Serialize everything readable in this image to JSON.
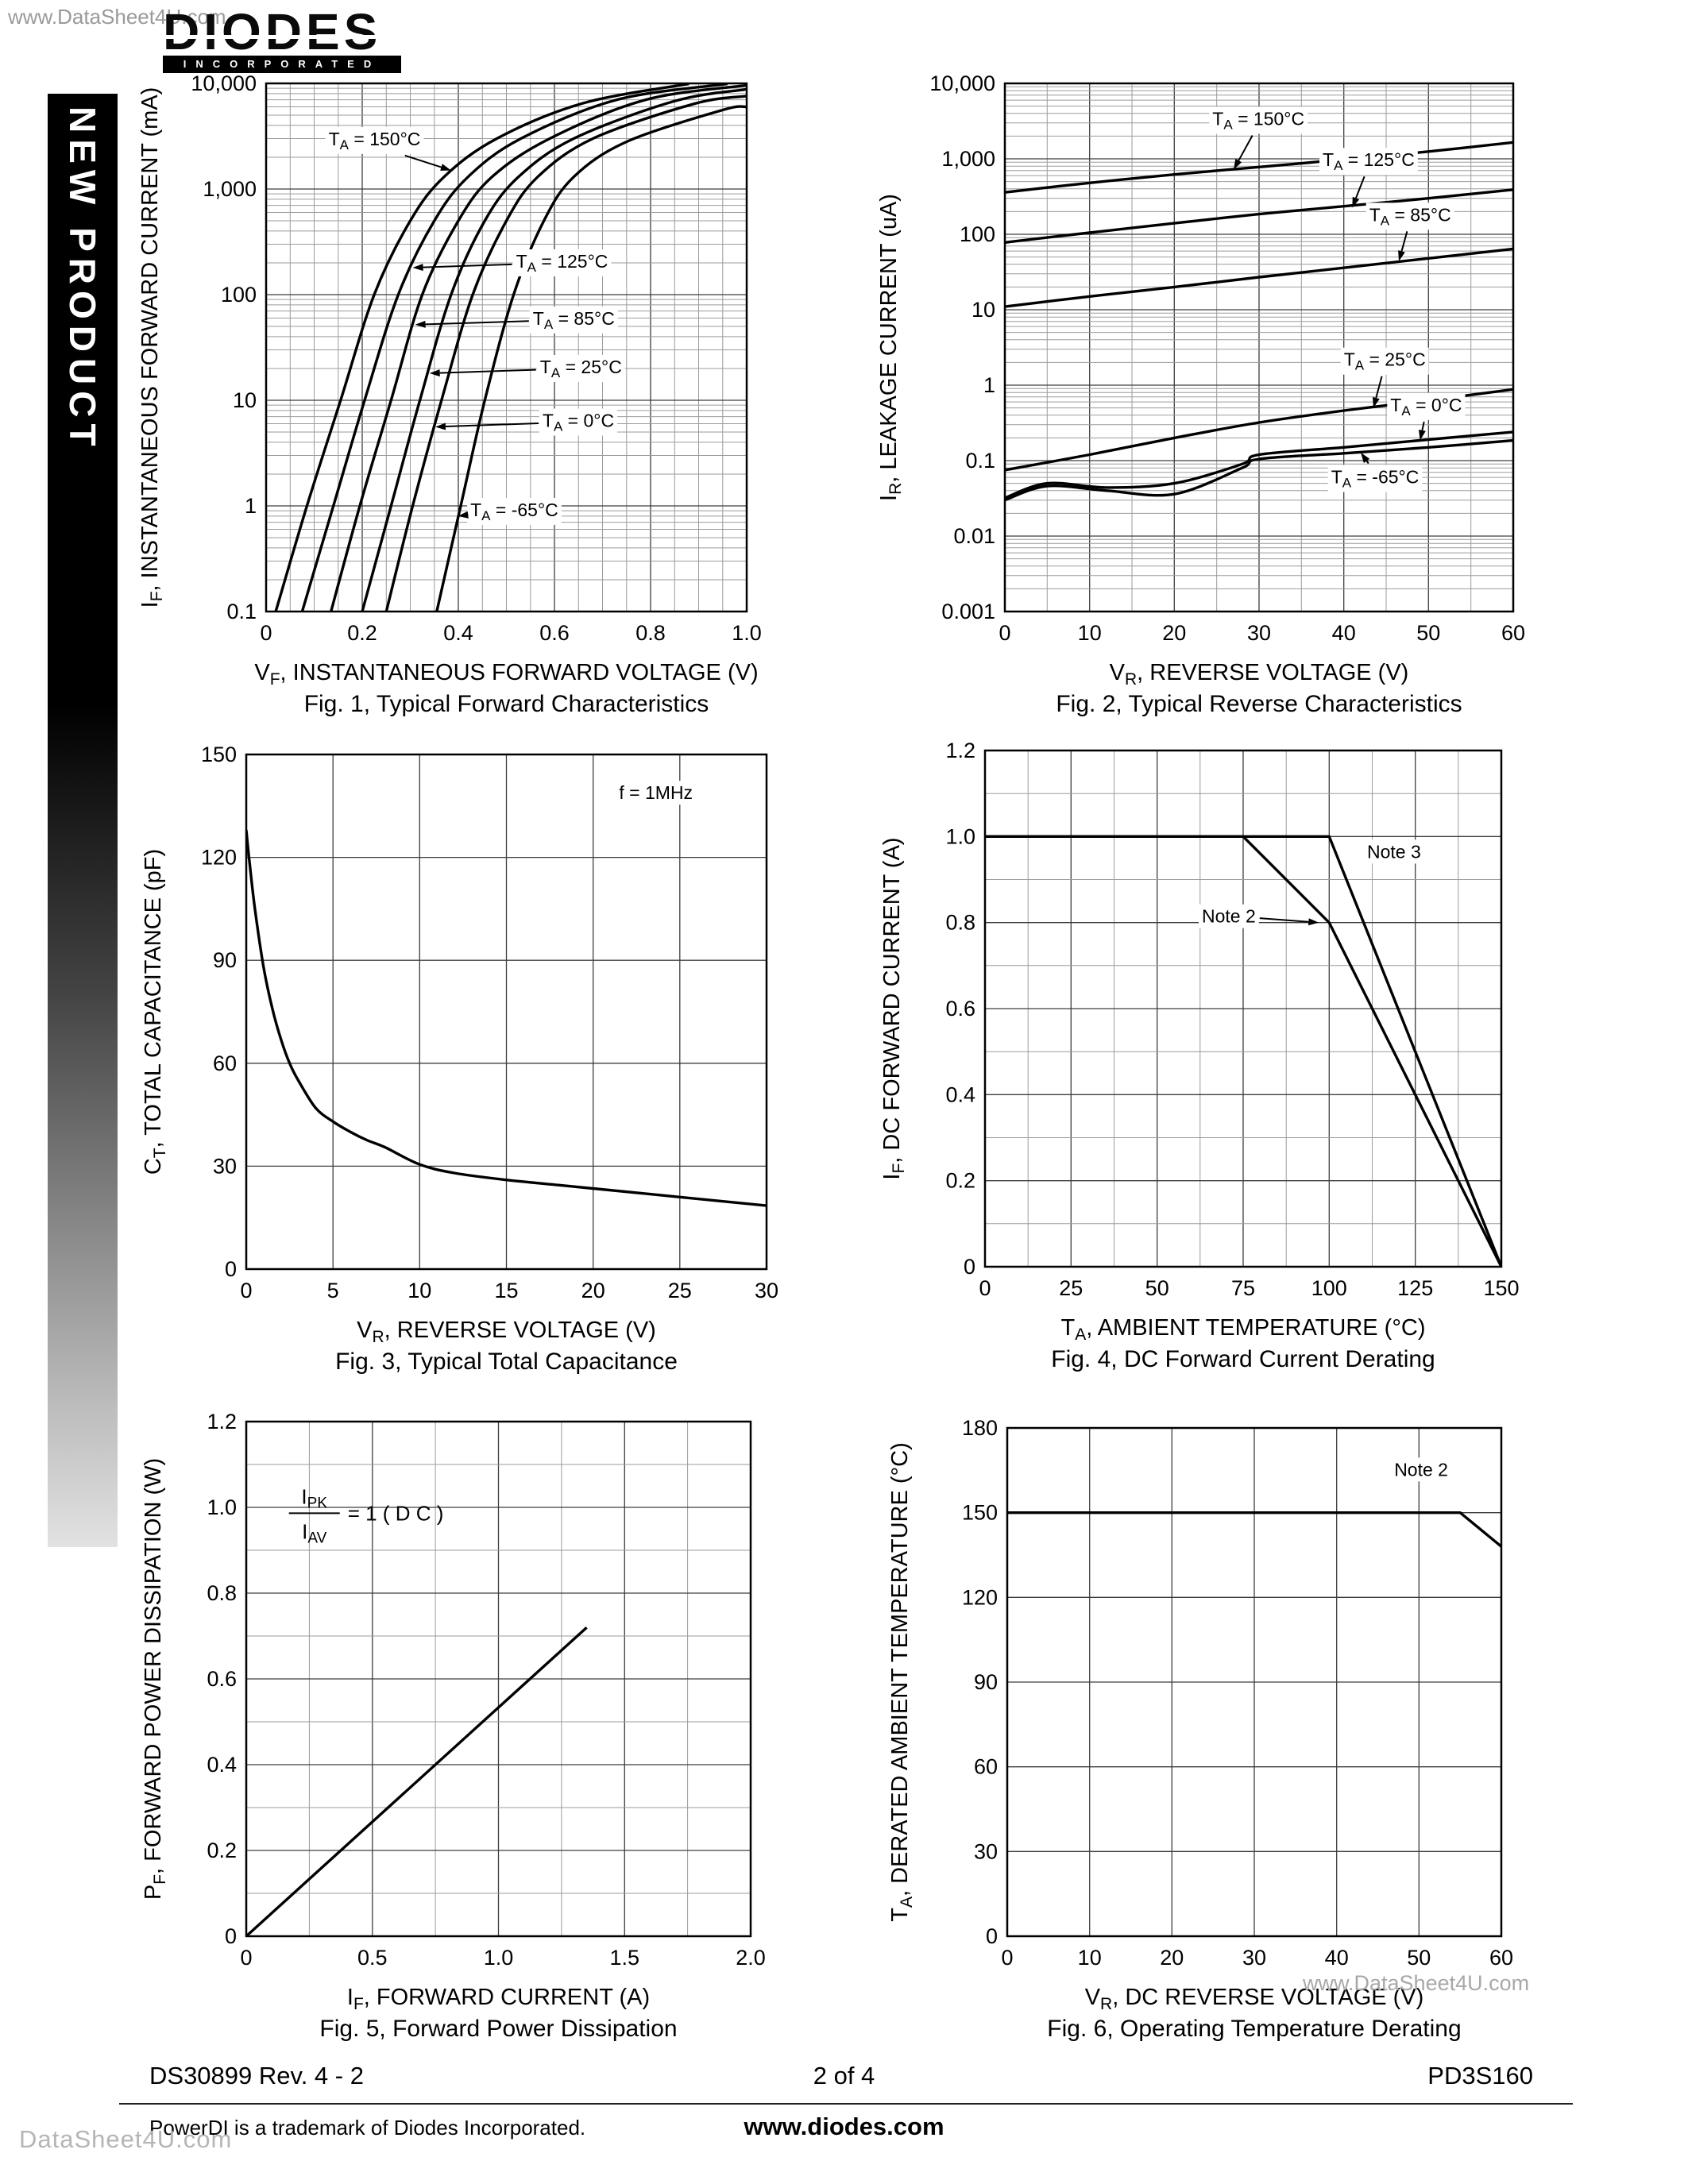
{
  "page": {
    "watermark_top": "www.DataSheet4U.com",
    "watermark_fig6": "www.DataSheet4U.com",
    "watermark_bottom": "DataSheet4U.com",
    "banner": "NEW PRODUCT",
    "logo": {
      "name": "DIODES",
      "sub": "INCORPORATED"
    },
    "footer": {
      "doc_number": "DS30899 Rev. 4 - 2",
      "page_indicator": "2 of 4",
      "part_number": "PD3S160",
      "trademark": "PowerDI is a trademark of Diodes Incorporated.",
      "website": "www.diodes.com"
    }
  },
  "chart_data": [
    {
      "id": "fig1",
      "type": "line",
      "title": "Fig. 1, Typical Forward Characteristics",
      "xlabel": "V_F_, INSTANTANEOUS FORWARD VOLTAGE (V)",
      "ylabel": "I_F_, INSTANTANEOUS FORWARD CURRENT (mA)",
      "x": {
        "min": 0,
        "max": 1,
        "ticks": [
          0,
          0.2,
          0.4,
          0.6,
          0.8,
          1
        ],
        "tick_labels": [
          "0",
          "0.2",
          "0.4",
          "0.6",
          "0.8",
          "1.0"
        ],
        "grid_step": 0.05
      },
      "y": {
        "log": true,
        "min": 0.1,
        "max": 10000,
        "ticks": [
          10000,
          1000,
          100,
          10,
          1,
          0.1
        ],
        "tick_labels": [
          "10,000",
          "1,000",
          "100",
          "10",
          "1",
          "0.1"
        ]
      },
      "series": [
        {
          "name": "TA = 150C",
          "smooth": true,
          "points": [
            [
              0.02,
              0.1
            ],
            [
              0.085,
              1
            ],
            [
              0.155,
              10
            ],
            [
              0.225,
              100
            ],
            [
              0.3,
              500
            ],
            [
              0.37,
              1300
            ],
            [
              0.48,
              3000
            ],
            [
              0.66,
              6500
            ],
            [
              0.88,
              9900
            ]
          ]
        },
        {
          "name": "TA = 125C",
          "smooth": true,
          "points": [
            [
              0.075,
              0.1
            ],
            [
              0.14,
              1
            ],
            [
              0.205,
              10
            ],
            [
              0.275,
              100
            ],
            [
              0.35,
              500
            ],
            [
              0.42,
              1300
            ],
            [
              0.53,
              3000
            ],
            [
              0.73,
              7000
            ],
            [
              0.96,
              9900
            ]
          ]
        },
        {
          "name": "TA = 85C",
          "smooth": true,
          "points": [
            [
              0.135,
              0.1
            ],
            [
              0.195,
              1
            ],
            [
              0.26,
              10
            ],
            [
              0.325,
              100
            ],
            [
              0.4,
              500
            ],
            [
              0.47,
              1300
            ],
            [
              0.59,
              3000
            ],
            [
              0.79,
              7000
            ],
            [
              1,
              9600
            ]
          ]
        },
        {
          "name": "TA = 25C",
          "smooth": true,
          "points": [
            [
              0.2,
              0.1
            ],
            [
              0.26,
              1
            ],
            [
              0.32,
              10
            ],
            [
              0.385,
              100
            ],
            [
              0.455,
              500
            ],
            [
              0.525,
              1300
            ],
            [
              0.64,
              3000
            ],
            [
              0.85,
              6800
            ],
            [
              1,
              8800
            ]
          ]
        },
        {
          "name": "TA = 0C",
          "smooth": true,
          "points": [
            [
              0.25,
              0.1
            ],
            [
              0.305,
              1
            ],
            [
              0.365,
              10
            ],
            [
              0.43,
              100
            ],
            [
              0.5,
              500
            ],
            [
              0.565,
              1300
            ],
            [
              0.68,
              3000
            ],
            [
              0.89,
              6400
            ],
            [
              1,
              7600
            ]
          ]
        },
        {
          "name": "TA = -65C",
          "smooth": true,
          "points": [
            [
              0.355,
              0.1
            ],
            [
              0.405,
              1
            ],
            [
              0.455,
              10
            ],
            [
              0.515,
              100
            ],
            [
              0.578,
              500
            ],
            [
              0.64,
              1300
            ],
            [
              0.75,
              2800
            ],
            [
              0.95,
              5600
            ],
            [
              1,
              6000
            ]
          ]
        }
      ],
      "annotations": [
        {
          "text": "T_A_ = 150°C",
          "x": 0.13,
          "y": 2600,
          "target": {
            "x": 0.385,
            "y": 1500
          }
        },
        {
          "text": "T_A_ = 125°C",
          "x": 0.52,
          "y": 180,
          "target": {
            "x": 0.305,
            "y": 180
          }
        },
        {
          "text": "T_A_ = 85°C",
          "x": 0.555,
          "y": 52,
          "target": {
            "x": 0.31,
            "y": 52
          }
        },
        {
          "text": "T_A_ = 25°C",
          "x": 0.57,
          "y": 18,
          "target": {
            "x": 0.34,
            "y": 18
          }
        },
        {
          "text": "T_A_ = 0°C",
          "x": 0.575,
          "y": 5.6,
          "target": {
            "x": 0.352,
            "y": 5.6
          }
        },
        {
          "text": "T_A_ = -65°C",
          "x": 0.425,
          "y": 0.8,
          "target": {
            "x": 0.399,
            "y": 0.8
          }
        }
      ]
    },
    {
      "id": "fig2",
      "type": "line",
      "title": "Fig. 2, Typical Reverse Characteristics",
      "xlabel": "V_R_, REVERSE VOLTAGE (V)",
      "ylabel": "I_R_, LEAKAGE CURRENT (uA)",
      "x": {
        "min": 0,
        "max": 60,
        "ticks": [
          0,
          10,
          20,
          30,
          40,
          50,
          60
        ],
        "tick_labels": [
          "0",
          "10",
          "20",
          "30",
          "40",
          "50",
          "60"
        ],
        "grid_step": 5
      },
      "y": {
        "log": true,
        "min": 0.001,
        "max": 10000,
        "ticks": [
          10000,
          1000,
          100,
          10,
          1,
          0.1,
          0.01,
          0.001
        ],
        "tick_labels": [
          "10,000",
          "1,000",
          "100",
          "10",
          "1",
          "0.1",
          "0.01",
          "0.001"
        ]
      },
      "series": [
        {
          "name": "TA = 150C",
          "smooth": true,
          "points": [
            [
              0,
              360
            ],
            [
              10,
              480
            ],
            [
              20,
              620
            ],
            [
              30,
              780
            ],
            [
              40,
              980
            ],
            [
              50,
              1250
            ],
            [
              60,
              1650
            ]
          ]
        },
        {
          "name": "TA = 125C",
          "smooth": true,
          "points": [
            [
              0,
              78
            ],
            [
              10,
              105
            ],
            [
              20,
              140
            ],
            [
              30,
              185
            ],
            [
              40,
              235
            ],
            [
              50,
              300
            ],
            [
              60,
              390
            ]
          ]
        },
        {
          "name": "TA = 85C",
          "smooth": true,
          "points": [
            [
              0,
              11
            ],
            [
              10,
              15
            ],
            [
              20,
              20
            ],
            [
              30,
              27
            ],
            [
              40,
              36
            ],
            [
              50,
              48
            ],
            [
              60,
              64
            ]
          ]
        },
        {
          "name": "TA = 25C",
          "smooth": true,
          "points": [
            [
              0,
              0.075
            ],
            [
              10,
              0.12
            ],
            [
              20,
              0.2
            ],
            [
              30,
              0.32
            ],
            [
              40,
              0.46
            ],
            [
              50,
              0.63
            ],
            [
              60,
              0.88
            ]
          ]
        },
        {
          "name": "TA = 0C",
          "smooth": true,
          "points": [
            [
              0,
              0.032
            ],
            [
              5,
              0.05
            ],
            [
              12,
              0.044
            ],
            [
              20,
              0.05
            ],
            [
              28,
              0.09
            ],
            [
              30,
              0.12
            ],
            [
              40,
              0.15
            ],
            [
              50,
              0.19
            ],
            [
              60,
              0.24
            ]
          ]
        },
        {
          "name": "TA = -65C",
          "smooth": true,
          "points": [
            [
              0,
              0.03
            ],
            [
              5,
              0.046
            ],
            [
              12,
              0.04
            ],
            [
              20,
              0.036
            ],
            [
              28,
              0.08
            ],
            [
              30,
              0.105
            ],
            [
              40,
              0.125
            ],
            [
              50,
              0.15
            ],
            [
              60,
              0.185
            ]
          ]
        }
      ],
      "annotations": [
        {
          "text": "T_A_ = 150°C",
          "x": 24.5,
          "y": 2800,
          "target": {
            "x": 27,
            "y": 720
          }
        },
        {
          "text": "T_A_ = 125°C",
          "x": 37.5,
          "y": 800,
          "target": {
            "x": 41,
            "y": 225
          }
        },
        {
          "text": "T_A_ = 85°C",
          "x": 43,
          "y": 150,
          "target": {
            "x": 46.5,
            "y": 44
          }
        },
        {
          "text": "T_A_ = 25°C",
          "x": 40,
          "y": 1.8,
          "target": {
            "x": 43.5,
            "y": 0.5
          }
        },
        {
          "text": "T_A_ = 0°C",
          "x": 45.5,
          "y": 0.45,
          "target": {
            "x": 49,
            "y": 0.185
          }
        },
        {
          "text": "T_A_ = -65°C",
          "x": 38.5,
          "y": 0.05,
          "target": {
            "x": 42,
            "y": 0.128
          }
        }
      ]
    },
    {
      "id": "fig3",
      "type": "line",
      "title": "Fig. 3, Typical Total Capacitance",
      "xlabel": "V_R_, REVERSE VOLTAGE (V)",
      "ylabel": "C_T_, TOTAL CAPACITANCE (pF)",
      "x": {
        "min": 0,
        "max": 30,
        "ticks": [
          0,
          5,
          10,
          15,
          20,
          25,
          30
        ],
        "tick_labels": [
          "0",
          "5",
          "10",
          "15",
          "20",
          "25",
          "30"
        ],
        "grid_step": 5
      },
      "y": {
        "min": 0,
        "max": 150,
        "ticks": [
          0,
          30,
          60,
          90,
          120,
          150
        ],
        "tick_labels": [
          "0",
          "30",
          "60",
          "90",
          "120",
          "150"
        ],
        "grid_step": 30
      },
      "series": [
        {
          "name": "CT",
          "smooth": true,
          "points": [
            [
              0,
              128
            ],
            [
              0.2,
              118
            ],
            [
              0.5,
              105
            ],
            [
              1,
              88
            ],
            [
              1.5,
              76
            ],
            [
              2,
              67
            ],
            [
              2.5,
              60
            ],
            [
              3,
              55
            ],
            [
              4,
              47
            ],
            [
              5,
              43
            ],
            [
              6,
              40
            ],
            [
              7,
              37.5
            ],
            [
              8,
              35.5
            ],
            [
              10,
              30.5
            ],
            [
              12,
              28
            ],
            [
              15,
              26
            ],
            [
              18,
              24.5
            ],
            [
              20,
              23.5
            ],
            [
              25,
              21
            ],
            [
              30,
              18.5
            ]
          ]
        }
      ],
      "annotations": [
        {
          "text": "f = 1MHz",
          "x": 21.5,
          "y": 137
        }
      ]
    },
    {
      "id": "fig4",
      "type": "line",
      "title": "Fig. 4,  DC Forward Current Derating",
      "xlabel": "T_A_, AMBIENT  TEMPERATURE (°C)",
      "ylabel": "I_F_, DC FORWARD CURRENT (A)",
      "x": {
        "min": 0,
        "max": 150,
        "ticks": [
          0,
          25,
          50,
          75,
          100,
          125,
          150
        ],
        "tick_labels": [
          "0",
          "25",
          "50",
          "75",
          "100",
          "125",
          "150"
        ],
        "grid_step": 12.5
      },
      "y": {
        "min": 0,
        "max": 1.2,
        "ticks": [
          0,
          0.2,
          0.4,
          0.6,
          0.8,
          1,
          1.2
        ],
        "tick_labels": [
          "0",
          "0.2",
          "0.4",
          "0.6",
          "0.8",
          "1.0",
          "1.2"
        ],
        "grid_step": 0.1
      },
      "series": [
        {
          "name": "Note 2",
          "smooth": false,
          "points": [
            [
              0,
              1
            ],
            [
              75,
              1
            ],
            [
              100,
              0.8
            ],
            [
              150,
              0
            ]
          ]
        },
        {
          "name": "Note 3",
          "smooth": false,
          "points": [
            [
              0,
              1
            ],
            [
              100,
              1
            ],
            [
              150,
              0
            ]
          ]
        }
      ],
      "annotations": [
        {
          "text": "Note 3",
          "x": 111,
          "y": 0.95
        },
        {
          "text": "Note 2",
          "x": 63,
          "y": 0.8,
          "target": {
            "x": 97,
            "y": 0.8
          }
        }
      ]
    },
    {
      "id": "fig5",
      "type": "line",
      "title": "Fig. 5,  Forward Power Dissipation",
      "xlabel": "I_F_, FORWARD CURRENT (A)",
      "ylabel": "P_F_, FORWARD POWER DISSIPATION (W)",
      "x": {
        "min": 0,
        "max": 2,
        "ticks": [
          0,
          0.5,
          1,
          1.5,
          2
        ],
        "tick_labels": [
          "0",
          "0.5",
          "1.0",
          "1.5",
          "2.0"
        ],
        "grid_step": 0.25
      },
      "y": {
        "min": 0,
        "max": 1.2,
        "ticks": [
          0,
          0.2,
          0.4,
          0.6,
          0.8,
          1,
          1.2
        ],
        "tick_labels": [
          "0",
          "0.2",
          "0.4",
          "0.6",
          "0.8",
          "1.0",
          "1.2"
        ],
        "grid_step": 0.1
      },
      "series": [
        {
          "name": "PF",
          "smooth": false,
          "points": [
            [
              0,
              0
            ],
            [
              1.35,
              0.72
            ]
          ]
        }
      ],
      "annotations": [
        {
          "fraction": {
            "num": "I_PK_",
            "den": "I_AV_",
            "rhs": "= 1 ( D C )"
          },
          "x": 0.27,
          "y": 0.99
        }
      ]
    },
    {
      "id": "fig6",
      "type": "line",
      "title": "Fig. 6,  Operating Temperature Derating",
      "xlabel": "V_R_, DC REVERSE VOLTAGE (V)",
      "ylabel": "T_A_, DERATED AMBIENT TEMPERATURE (°C)",
      "x": {
        "min": 0,
        "max": 60,
        "ticks": [
          0,
          10,
          20,
          30,
          40,
          50,
          60
        ],
        "tick_labels": [
          "0",
          "10",
          "20",
          "30",
          "40",
          "50",
          "60"
        ],
        "grid_step": 10
      },
      "y": {
        "min": 0,
        "max": 180,
        "ticks": [
          0,
          30,
          60,
          90,
          120,
          150,
          180
        ],
        "tick_labels": [
          "0",
          "30",
          "60",
          "90",
          "120",
          "150",
          "180"
        ],
        "grid_step": 30
      },
      "series": [
        {
          "name": "Note 2",
          "smooth": false,
          "points": [
            [
              0,
              150
            ],
            [
              55,
              150
            ],
            [
              60,
              138
            ]
          ]
        }
      ],
      "annotations": [
        {
          "text": "Note 2",
          "x": 47,
          "y": 163
        }
      ]
    }
  ]
}
